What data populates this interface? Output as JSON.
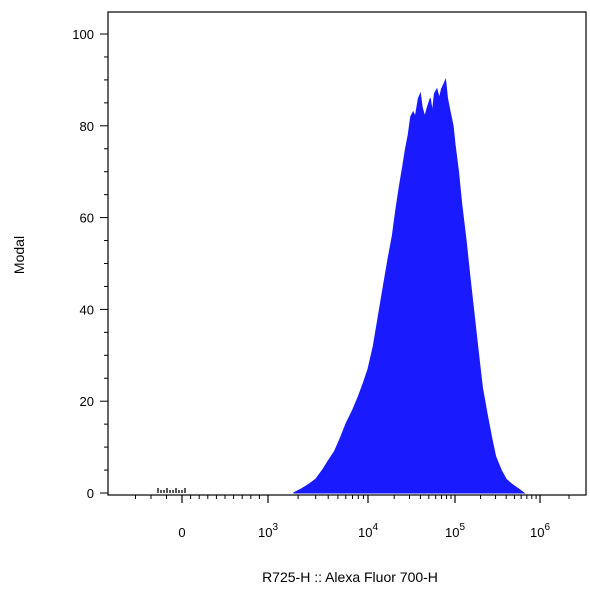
{
  "chart_data": {
    "type": "area",
    "title": "",
    "xlabel": "R725-H :: Alexa Fluor 700-H",
    "ylabel": "Modal",
    "x_scale": "biexponential",
    "ylim": [
      0,
      100
    ],
    "x_ticks": [
      {
        "value": 0,
        "base": "0",
        "exp": ""
      },
      {
        "value": 1000,
        "base": "10",
        "exp": "3"
      },
      {
        "value": 10000,
        "base": "10",
        "exp": "4"
      },
      {
        "value": 100000,
        "base": "10",
        "exp": "5"
      },
      {
        "value": 1000000,
        "base": "10",
        "exp": "6"
      }
    ],
    "y_ticks": [
      0,
      20,
      40,
      60,
      80,
      100
    ],
    "series": [
      {
        "color": "#1a1aff",
        "points": [
          [
            1800,
            0
          ],
          [
            2200,
            1
          ],
          [
            2600,
            2
          ],
          [
            3000,
            3
          ],
          [
            3500,
            5
          ],
          [
            4000,
            7
          ],
          [
            4600,
            9
          ],
          [
            5300,
            12
          ],
          [
            6000,
            15
          ],
          [
            7000,
            18
          ],
          [
            8000,
            21
          ],
          [
            9000,
            24
          ],
          [
            10000,
            27
          ],
          [
            11500,
            32
          ],
          [
            13000,
            38
          ],
          [
            15000,
            45
          ],
          [
            17000,
            51
          ],
          [
            19000,
            56
          ],
          [
            21000,
            62
          ],
          [
            23000,
            67
          ],
          [
            25000,
            71
          ],
          [
            27000,
            75
          ],
          [
            29000,
            78
          ],
          [
            31000,
            82
          ],
          [
            33000,
            83
          ],
          [
            35000,
            82
          ],
          [
            38000,
            86
          ],
          [
            40000,
            87
          ],
          [
            42000,
            84
          ],
          [
            45000,
            82
          ],
          [
            48000,
            84
          ],
          [
            52000,
            86
          ],
          [
            55000,
            83
          ],
          [
            58000,
            87
          ],
          [
            62000,
            88
          ],
          [
            66000,
            86
          ],
          [
            70000,
            88
          ],
          [
            74000,
            89
          ],
          [
            78000,
            90
          ],
          [
            82000,
            86
          ],
          [
            88000,
            83
          ],
          [
            95000,
            80
          ],
          [
            100000,
            76
          ],
          [
            110000,
            70
          ],
          [
            120000,
            63
          ],
          [
            135000,
            55
          ],
          [
            150000,
            47
          ],
          [
            170000,
            38
          ],
          [
            190000,
            30
          ],
          [
            210000,
            23
          ],
          [
            240000,
            17
          ],
          [
            270000,
            12
          ],
          [
            300000,
            8
          ],
          [
            350000,
            5
          ],
          [
            400000,
            3
          ],
          [
            460000,
            2
          ],
          [
            550000,
            1
          ],
          [
            650000,
            0
          ]
        ]
      }
    ],
    "grid": false,
    "legend": "none"
  }
}
